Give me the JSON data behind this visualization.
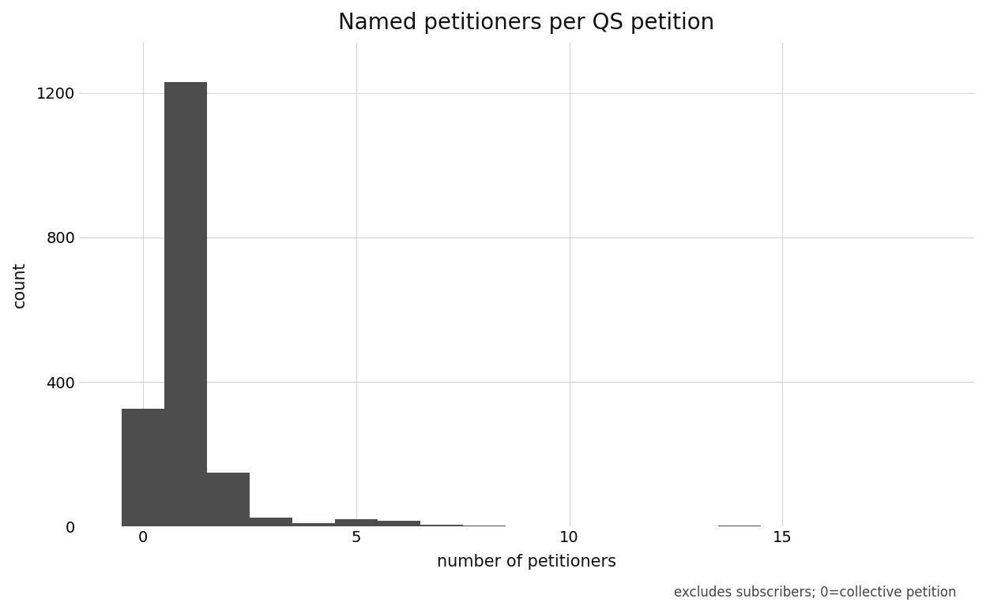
{
  "title": "Named petitioners per QS petition",
  "xlabel": "number of petitioners",
  "ylabel": "count",
  "caption": "excludes subscribers; 0=collective petition",
  "bar_color": "#4d4d4d",
  "background_color": "#ffffff",
  "grid_color": "#d3d3d3",
  "xlim": [
    -1.5,
    19.5
  ],
  "ylim": [
    0,
    1340
  ],
  "yticks": [
    0,
    400,
    800,
    1200
  ],
  "xticks": [
    0,
    5,
    10,
    15
  ],
  "title_fontsize": 20,
  "axis_label_fontsize": 15,
  "tick_fontsize": 14,
  "caption_fontsize": 12,
  "bar_counts": [
    325,
    1230,
    150,
    25,
    10,
    20,
    15,
    5,
    3,
    1,
    1,
    1,
    1,
    1,
    2,
    1,
    1,
    1,
    1,
    1
  ],
  "bin_width": 1
}
